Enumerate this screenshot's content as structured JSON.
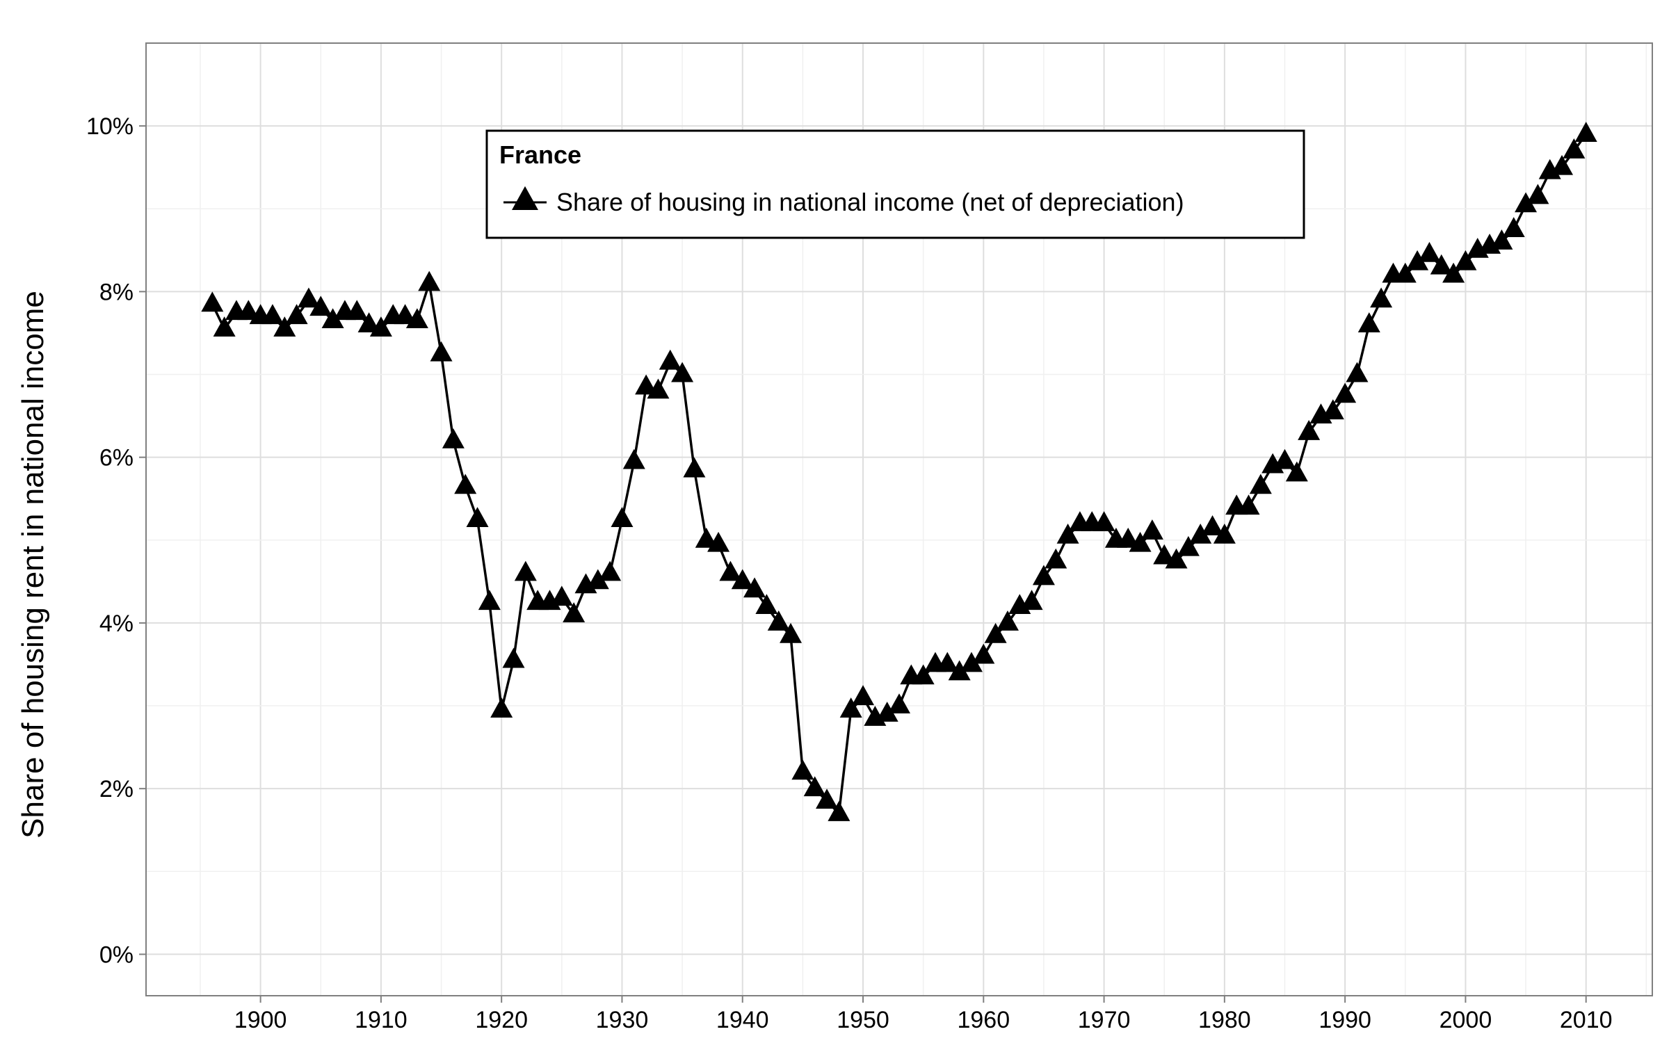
{
  "chart_data": {
    "type": "line",
    "title": "",
    "xlabel": "",
    "ylabel": "Share of housing rent in national income",
    "x_ticks": [
      1900,
      1910,
      1920,
      1930,
      1940,
      1950,
      1960,
      1970,
      1980,
      1990,
      2000,
      2010
    ],
    "y_ticks": [
      0,
      2,
      4,
      6,
      8,
      10
    ],
    "y_tick_labels": [
      "0%",
      "2%",
      "4%",
      "6%",
      "8%",
      "10%"
    ],
    "xlim": [
      1890.5,
      2015.5
    ],
    "ylim": [
      -0.5,
      11.0
    ],
    "grid": true,
    "legend": {
      "title": "France",
      "position": "top-center",
      "entries": [
        "Share of housing in national income (net of depreciation)"
      ]
    },
    "series": [
      {
        "name": "Share of housing in national income (net of depreciation)",
        "marker": "triangle",
        "color": "#000000",
        "x": [
          1896,
          1897,
          1898,
          1899,
          1900,
          1901,
          1902,
          1903,
          1904,
          1905,
          1906,
          1907,
          1908,
          1909,
          1910,
          1911,
          1912,
          1913,
          1914,
          1915,
          1916,
          1917,
          1918,
          1919,
          1920,
          1921,
          1922,
          1923,
          1924,
          1925,
          1926,
          1927,
          1928,
          1929,
          1930,
          1931,
          1932,
          1933,
          1934,
          1935,
          1936,
          1937,
          1938,
          1939,
          1940,
          1941,
          1942,
          1943,
          1944,
          1945,
          1946,
          1947,
          1948,
          1949,
          1950,
          1951,
          1952,
          1953,
          1954,
          1955,
          1956,
          1957,
          1958,
          1959,
          1960,
          1961,
          1962,
          1963,
          1964,
          1965,
          1966,
          1967,
          1968,
          1969,
          1970,
          1971,
          1972,
          1973,
          1974,
          1975,
          1976,
          1977,
          1978,
          1979,
          1980,
          1981,
          1982,
          1983,
          1984,
          1985,
          1986,
          1987,
          1988,
          1989,
          1990,
          1991,
          1992,
          1993,
          1994,
          1995,
          1996,
          1997,
          1998,
          1999,
          2000,
          2001,
          2002,
          2003,
          2004,
          2005,
          2006,
          2007,
          2008,
          2009,
          2010
        ],
        "y": [
          7.85,
          7.55,
          7.75,
          7.75,
          7.7,
          7.7,
          7.55,
          7.7,
          7.9,
          7.8,
          7.65,
          7.75,
          7.75,
          7.6,
          7.55,
          7.7,
          7.7,
          7.65,
          8.1,
          7.25,
          6.2,
          5.65,
          5.25,
          4.25,
          2.95,
          3.55,
          4.6,
          4.25,
          4.25,
          4.3,
          4.1,
          4.45,
          4.5,
          4.6,
          5.25,
          5.95,
          6.85,
          6.8,
          7.15,
          7.0,
          5.85,
          5.0,
          4.95,
          4.6,
          4.5,
          4.4,
          4.2,
          4.0,
          3.85,
          2.2,
          2.0,
          1.85,
          1.7,
          2.95,
          3.1,
          2.85,
          2.9,
          3.0,
          3.35,
          3.35,
          3.5,
          3.5,
          3.4,
          3.5,
          3.6,
          3.85,
          4.0,
          4.2,
          4.25,
          4.55,
          4.75,
          5.05,
          5.2,
          5.2,
          5.2,
          5.0,
          5.0,
          4.95,
          5.1,
          4.8,
          4.75,
          4.9,
          5.05,
          5.15,
          5.05,
          5.4,
          5.4,
          5.65,
          5.9,
          5.95,
          5.8,
          6.3,
          6.5,
          6.55,
          6.75,
          7.0,
          7.6,
          7.9,
          8.2,
          8.2,
          8.35,
          8.45,
          8.3,
          8.2,
          8.35,
          8.5,
          8.55,
          8.6,
          8.75,
          9.05,
          9.15,
          9.45,
          9.5,
          9.7,
          9.9
        ]
      }
    ]
  }
}
